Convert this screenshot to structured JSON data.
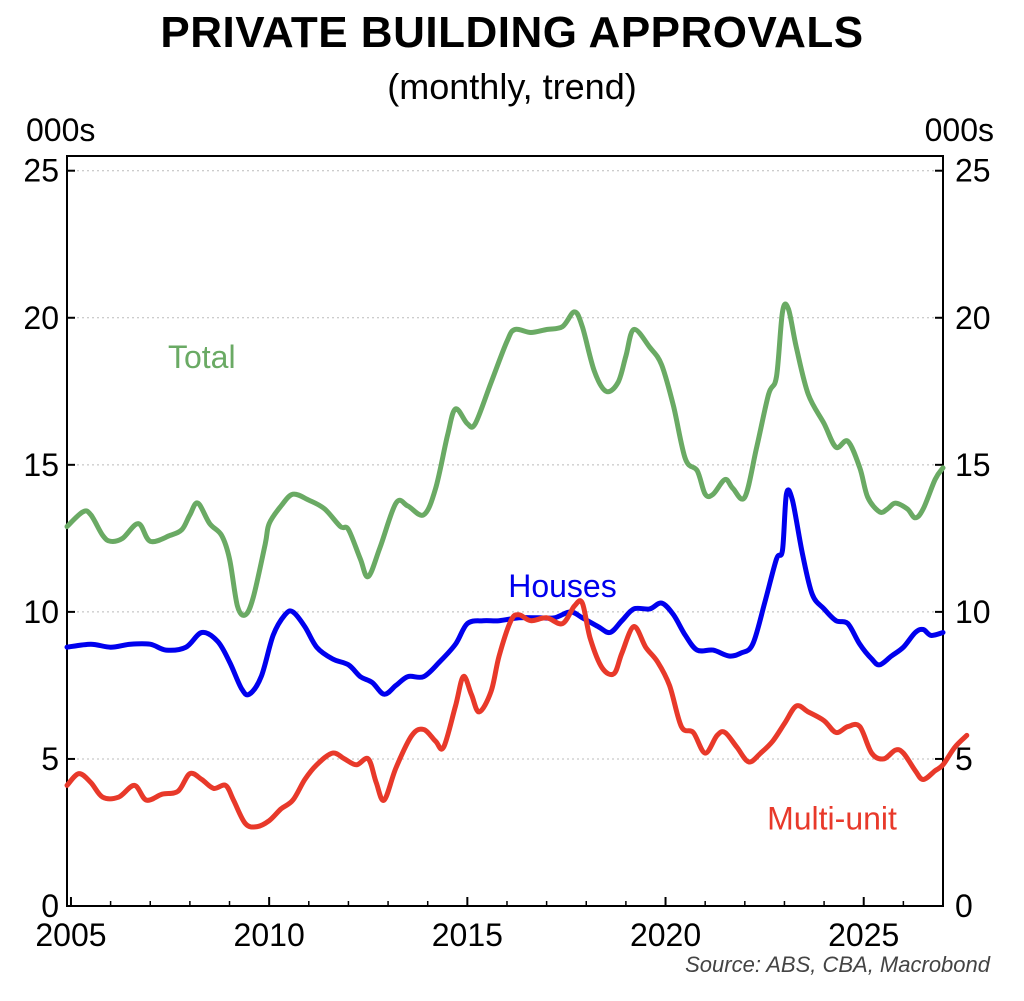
{
  "chart_data": {
    "type": "line",
    "title": "PRIVATE BUILDING APPROVALS",
    "subtitle": "(monthly, trend)",
    "y_unit_left": "000s",
    "y_unit_right": "000s",
    "source": "Source: ABS, CBA, Macrobond",
    "xlim": [
      2004.9,
      2027.0
    ],
    "ylim": [
      0,
      25.5
    ],
    "x_ticks": [
      2005,
      2010,
      2015,
      2020,
      2025
    ],
    "x_tick_labels": [
      "2005",
      "2010",
      "2015",
      "2020",
      "2025"
    ],
    "y_ticks": [
      0,
      5,
      10,
      15,
      20,
      25
    ],
    "y_tick_labels": [
      "0",
      "5",
      "10",
      "15",
      "20",
      "25"
    ],
    "grid": "horizontal dotted",
    "series": [
      {
        "name": "Total",
        "color": "#6aaa64",
        "label_at": [
          2008.3,
          18.3
        ],
        "points": [
          [
            2004.9,
            12.9
          ],
          [
            2005.3,
            13.4
          ],
          [
            2005.5,
            13.3
          ],
          [
            2005.8,
            12.6
          ],
          [
            2006.0,
            12.4
          ],
          [
            2006.3,
            12.5
          ],
          [
            2006.7,
            13.0
          ],
          [
            2007.0,
            12.4
          ],
          [
            2007.5,
            12.6
          ],
          [
            2007.8,
            12.8
          ],
          [
            2008.0,
            13.3
          ],
          [
            2008.2,
            13.7
          ],
          [
            2008.5,
            13.0
          ],
          [
            2008.8,
            12.6
          ],
          [
            2009.0,
            11.8
          ],
          [
            2009.2,
            10.2
          ],
          [
            2009.4,
            9.9
          ],
          [
            2009.6,
            10.5
          ],
          [
            2009.9,
            12.3
          ],
          [
            2010.0,
            13.0
          ],
          [
            2010.3,
            13.6
          ],
          [
            2010.6,
            14.0
          ],
          [
            2011.0,
            13.8
          ],
          [
            2011.4,
            13.5
          ],
          [
            2011.8,
            12.9
          ],
          [
            2012.0,
            12.8
          ],
          [
            2012.3,
            11.8
          ],
          [
            2012.5,
            11.2
          ],
          [
            2012.8,
            12.2
          ],
          [
            2013.2,
            13.7
          ],
          [
            2013.5,
            13.6
          ],
          [
            2013.9,
            13.3
          ],
          [
            2014.2,
            14.2
          ],
          [
            2014.5,
            16.0
          ],
          [
            2014.7,
            16.9
          ],
          [
            2015.0,
            16.4
          ],
          [
            2015.2,
            16.4
          ],
          [
            2015.6,
            17.8
          ],
          [
            2016.0,
            19.2
          ],
          [
            2016.2,
            19.6
          ],
          [
            2016.6,
            19.5
          ],
          [
            2017.0,
            19.6
          ],
          [
            2017.4,
            19.7
          ],
          [
            2017.7,
            20.2
          ],
          [
            2017.9,
            19.7
          ],
          [
            2018.2,
            18.2
          ],
          [
            2018.5,
            17.5
          ],
          [
            2018.8,
            17.8
          ],
          [
            2019.0,
            18.7
          ],
          [
            2019.2,
            19.6
          ],
          [
            2019.6,
            19.0
          ],
          [
            2019.9,
            18.4
          ],
          [
            2020.2,
            17.0
          ],
          [
            2020.5,
            15.2
          ],
          [
            2020.8,
            14.8
          ],
          [
            2021.0,
            14.0
          ],
          [
            2021.2,
            14.0
          ],
          [
            2021.5,
            14.5
          ],
          [
            2021.7,
            14.2
          ],
          [
            2022.0,
            13.9
          ],
          [
            2022.3,
            15.6
          ],
          [
            2022.6,
            17.4
          ],
          [
            2022.8,
            18.0
          ],
          [
            2022.95,
            20.2
          ],
          [
            2023.1,
            20.3
          ],
          [
            2023.3,
            19.0
          ],
          [
            2023.6,
            17.4
          ],
          [
            2024.0,
            16.4
          ],
          [
            2024.3,
            15.6
          ],
          [
            2024.6,
            15.8
          ],
          [
            2024.9,
            14.9
          ],
          [
            2025.1,
            13.9
          ],
          [
            2025.4,
            13.4
          ],
          [
            2025.6,
            13.5
          ],
          [
            2025.8,
            13.7
          ],
          [
            2026.1,
            13.5
          ],
          [
            2026.3,
            13.2
          ],
          [
            2026.5,
            13.5
          ],
          [
            2026.8,
            14.5
          ],
          [
            2027.0,
            14.9
          ]
        ]
      },
      {
        "name": "Houses",
        "color": "#0000ee",
        "label_at": [
          2017.4,
          10.5
        ],
        "points": [
          [
            2004.9,
            8.8
          ],
          [
            2005.5,
            8.9
          ],
          [
            2006.0,
            8.8
          ],
          [
            2006.5,
            8.9
          ],
          [
            2007.0,
            8.9
          ],
          [
            2007.4,
            8.7
          ],
          [
            2007.9,
            8.8
          ],
          [
            2008.3,
            9.3
          ],
          [
            2008.7,
            9.0
          ],
          [
            2009.0,
            8.3
          ],
          [
            2009.3,
            7.4
          ],
          [
            2009.5,
            7.2
          ],
          [
            2009.8,
            7.8
          ],
          [
            2010.1,
            9.2
          ],
          [
            2010.4,
            9.9
          ],
          [
            2010.6,
            10.0
          ],
          [
            2010.9,
            9.5
          ],
          [
            2011.2,
            8.8
          ],
          [
            2011.6,
            8.4
          ],
          [
            2012.0,
            8.2
          ],
          [
            2012.3,
            7.8
          ],
          [
            2012.6,
            7.6
          ],
          [
            2012.9,
            7.2
          ],
          [
            2013.2,
            7.5
          ],
          [
            2013.5,
            7.8
          ],
          [
            2013.9,
            7.8
          ],
          [
            2014.3,
            8.3
          ],
          [
            2014.7,
            8.9
          ],
          [
            2015.0,
            9.6
          ],
          [
            2015.4,
            9.7
          ],
          [
            2015.8,
            9.7
          ],
          [
            2016.3,
            9.8
          ],
          [
            2016.8,
            9.8
          ],
          [
            2017.2,
            9.8
          ],
          [
            2017.6,
            10.0
          ],
          [
            2017.9,
            9.8
          ],
          [
            2018.3,
            9.5
          ],
          [
            2018.6,
            9.3
          ],
          [
            2018.9,
            9.7
          ],
          [
            2019.2,
            10.1
          ],
          [
            2019.6,
            10.1
          ],
          [
            2019.9,
            10.3
          ],
          [
            2020.2,
            9.9
          ],
          [
            2020.5,
            9.2
          ],
          [
            2020.8,
            8.7
          ],
          [
            2021.2,
            8.7
          ],
          [
            2021.6,
            8.5
          ],
          [
            2021.9,
            8.6
          ],
          [
            2022.2,
            8.9
          ],
          [
            2022.5,
            10.3
          ],
          [
            2022.8,
            11.8
          ],
          [
            2022.95,
            12.1
          ],
          [
            2023.05,
            14.0
          ],
          [
            2023.2,
            13.8
          ],
          [
            2023.45,
            12.0
          ],
          [
            2023.7,
            10.6
          ],
          [
            2024.0,
            10.1
          ],
          [
            2024.3,
            9.7
          ],
          [
            2024.6,
            9.6
          ],
          [
            2024.9,
            8.9
          ],
          [
            2025.2,
            8.4
          ],
          [
            2025.4,
            8.2
          ],
          [
            2025.7,
            8.5
          ],
          [
            2026.0,
            8.8
          ],
          [
            2026.3,
            9.3
          ],
          [
            2026.5,
            9.4
          ],
          [
            2026.7,
            9.2
          ],
          [
            2027.0,
            9.3
          ]
        ]
      },
      {
        "name": "Multi-unit",
        "color": "#e8392a",
        "label_at": [
          2024.2,
          2.6
        ],
        "points": [
          [
            2004.9,
            4.1
          ],
          [
            2005.2,
            4.5
          ],
          [
            2005.5,
            4.2
          ],
          [
            2005.8,
            3.7
          ],
          [
            2006.2,
            3.7
          ],
          [
            2006.6,
            4.1
          ],
          [
            2006.9,
            3.6
          ],
          [
            2007.3,
            3.8
          ],
          [
            2007.7,
            3.9
          ],
          [
            2008.0,
            4.5
          ],
          [
            2008.3,
            4.3
          ],
          [
            2008.6,
            4.0
          ],
          [
            2008.9,
            4.1
          ],
          [
            2009.1,
            3.6
          ],
          [
            2009.4,
            2.8
          ],
          [
            2009.7,
            2.7
          ],
          [
            2010.0,
            2.9
          ],
          [
            2010.3,
            3.3
          ],
          [
            2010.6,
            3.6
          ],
          [
            2010.9,
            4.3
          ],
          [
            2011.2,
            4.8
          ],
          [
            2011.6,
            5.2
          ],
          [
            2011.9,
            5.0
          ],
          [
            2012.2,
            4.8
          ],
          [
            2012.5,
            5.0
          ],
          [
            2012.7,
            4.2
          ],
          [
            2012.9,
            3.6
          ],
          [
            2013.2,
            4.7
          ],
          [
            2013.6,
            5.8
          ],
          [
            2013.9,
            6.0
          ],
          [
            2014.2,
            5.6
          ],
          [
            2014.4,
            5.4
          ],
          [
            2014.7,
            6.8
          ],
          [
            2014.9,
            7.8
          ],
          [
            2015.1,
            7.2
          ],
          [
            2015.3,
            6.6
          ],
          [
            2015.6,
            7.3
          ],
          [
            2015.8,
            8.5
          ],
          [
            2016.1,
            9.7
          ],
          [
            2016.3,
            9.9
          ],
          [
            2016.6,
            9.7
          ],
          [
            2017.0,
            9.8
          ],
          [
            2017.4,
            9.6
          ],
          [
            2017.7,
            10.2
          ],
          [
            2017.9,
            10.3
          ],
          [
            2018.1,
            9.1
          ],
          [
            2018.4,
            8.1
          ],
          [
            2018.7,
            7.9
          ],
          [
            2018.9,
            8.6
          ],
          [
            2019.2,
            9.5
          ],
          [
            2019.5,
            8.8
          ],
          [
            2019.8,
            8.3
          ],
          [
            2020.1,
            7.5
          ],
          [
            2020.4,
            6.1
          ],
          [
            2020.7,
            5.9
          ],
          [
            2021.0,
            5.2
          ],
          [
            2021.3,
            5.8
          ],
          [
            2021.5,
            5.9
          ],
          [
            2021.8,
            5.4
          ],
          [
            2022.1,
            4.9
          ],
          [
            2022.4,
            5.2
          ],
          [
            2022.7,
            5.6
          ],
          [
            2023.0,
            6.2
          ],
          [
            2023.3,
            6.8
          ],
          [
            2023.6,
            6.6
          ],
          [
            2024.0,
            6.3
          ],
          [
            2024.3,
            5.9
          ],
          [
            2024.6,
            6.1
          ],
          [
            2024.9,
            6.1
          ],
          [
            2025.2,
            5.2
          ],
          [
            2025.5,
            5.0
          ],
          [
            2025.8,
            5.3
          ],
          [
            2026.0,
            5.2
          ],
          [
            2026.3,
            4.6
          ],
          [
            2026.5,
            4.3
          ],
          [
            2026.8,
            4.6
          ],
          [
            2027.0,
            4.8
          ],
          [
            2027.3,
            5.4
          ],
          [
            2027.6,
            5.8
          ]
        ]
      }
    ]
  }
}
